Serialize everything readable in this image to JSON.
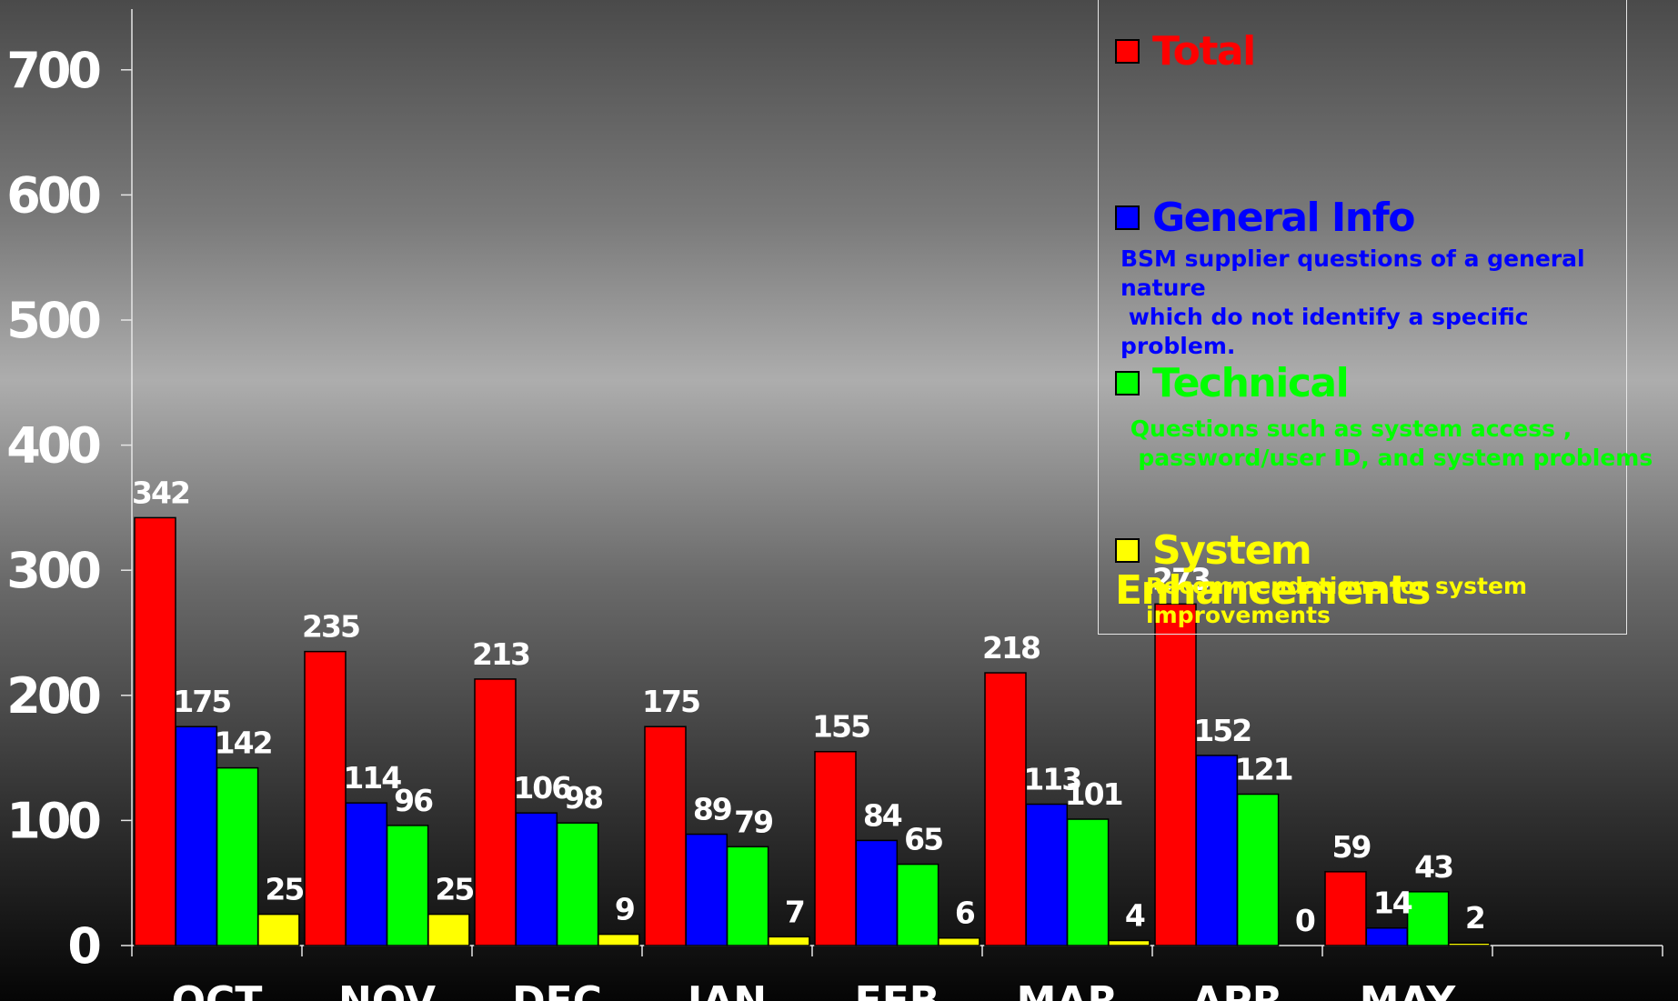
{
  "chart_data": {
    "type": "bar",
    "categories": [
      "OCT",
      "NOV",
      "DEC",
      "JAN",
      "FEB",
      "MAR",
      "APR",
      "MAY"
    ],
    "series": [
      {
        "name": "Total",
        "color": "#ff0000",
        "values": [
          342,
          235,
          213,
          175,
          155,
          218,
          273,
          59
        ]
      },
      {
        "name": "General Info",
        "color": "#0000ff",
        "values": [
          175,
          114,
          106,
          89,
          84,
          113,
          152,
          14
        ]
      },
      {
        "name": "Technical",
        "color": "#00ff00",
        "values": [
          142,
          96,
          98,
          79,
          65,
          101,
          121,
          43
        ]
      },
      {
        "name": "System Enhancements",
        "color": "#ffff00",
        "values": [
          25,
          25,
          9,
          7,
          6,
          4,
          0,
          2
        ]
      }
    ],
    "yticks": [
      0,
      100,
      200,
      300,
      400,
      500,
      600,
      700
    ],
    "ylim": [
      0,
      750
    ],
    "grid": false,
    "legend_position": "top-right"
  },
  "legend": [
    {
      "label": "Total",
      "color": "#ff0000",
      "desc": ""
    },
    {
      "label": "General Info",
      "color": "#0000ff",
      "desc": "BSM supplier questions of a general\nnature\n which do not identify a specific\nproblem."
    },
    {
      "label": "Technical",
      "color": "#00ff00",
      "desc": " Questions such as system access ,\n  password/user ID, and system problems"
    },
    {
      "label": "System Enhancements",
      "color": "#ffff00",
      "desc": "Recommendations for system\nimprovements"
    }
  ]
}
